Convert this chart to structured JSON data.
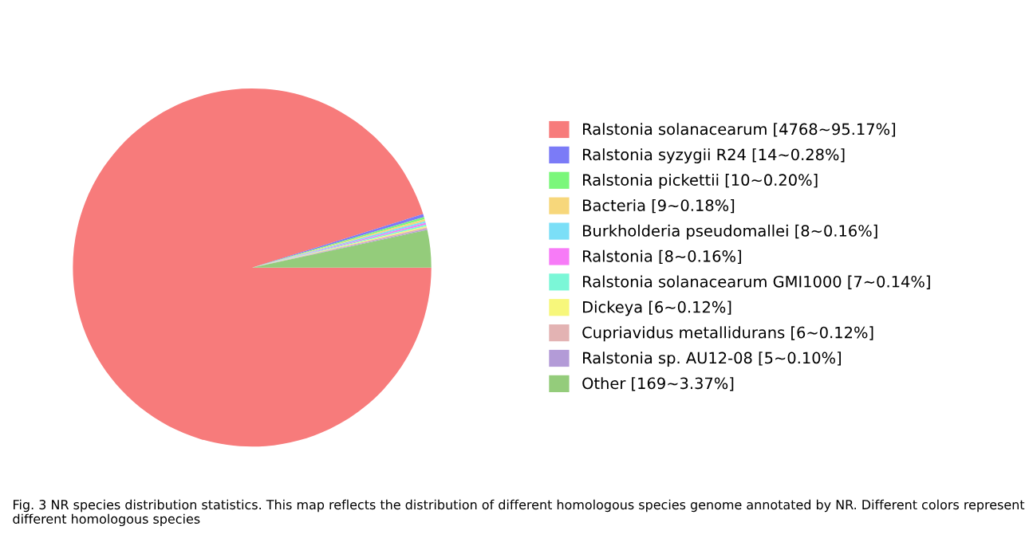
{
  "chart_data": {
    "type": "pie",
    "categories": [
      "Ralstonia solanacearum [4768~95.17%]",
      "Ralstonia syzygii R24 [14~0.28%]",
      "Ralstonia pickettii [10~0.20%]",
      "Bacteria [9~0.18%]",
      "Burkholderia pseudomallei [8~0.16%]",
      "Ralstonia [8~0.16%]",
      "Ralstonia solanacearum GMI1000 [7~0.14%]",
      "Dickeya [6~0.12%]",
      "Cupriavidus metallidurans [6~0.12%]",
      "Ralstonia sp. AU12-08 [5~0.10%]",
      "Other [169~3.37%]"
    ],
    "values": [
      4768,
      14,
      10,
      9,
      8,
      8,
      7,
      6,
      6,
      5,
      169
    ],
    "colors": [
      "#f77b7b",
      "#7b7bf7",
      "#7bf77b",
      "#f7d77b",
      "#7bdff7",
      "#f77bf7",
      "#7bf7d7",
      "#f7f77b",
      "#e3b3b3",
      "#b39bd7",
      "#94cc7b"
    ],
    "legend": "right",
    "annotations": [
      "Fig. 3 NR species distribution statistics. This map reflects the distribution of different homologous species genome annotated by NR. Different colors represent different homologous species"
    ]
  }
}
